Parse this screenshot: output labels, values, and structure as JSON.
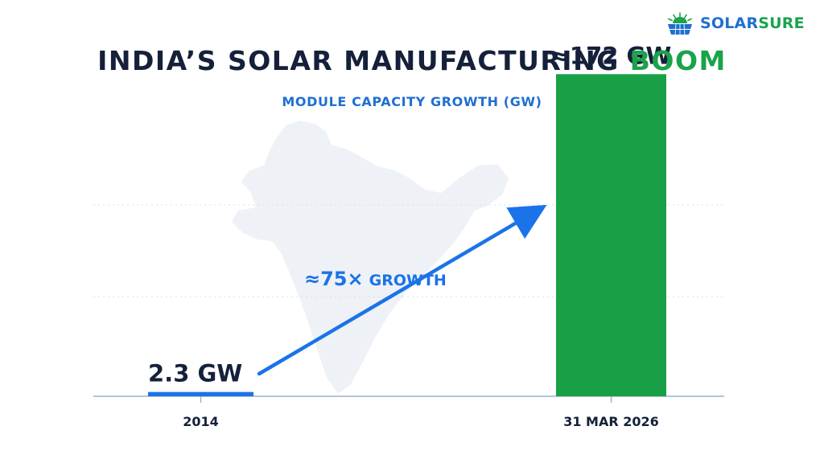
{
  "brand": {
    "name_part1": "SOLAR",
    "name_part2": "SURE",
    "color_primary": "#1f6fd1",
    "color_secondary": "#1aa34a",
    "icon": "solar-panel-sunrise-icon"
  },
  "header": {
    "title_main": "INDIA’S SOLAR MANUFACTURING",
    "title_accent": "BOOM",
    "subtitle": "MODULE CAPACITY GROWTH (GW)"
  },
  "colors": {
    "title": "#15203a",
    "bar_2014": "#1a73e8",
    "bar_2026": "#19a046",
    "arrow": "#1a73e8",
    "axis": "#9fb0c8",
    "map": "#eef1f6"
  },
  "background_icon": "india-map-icon",
  "chart_data": {
    "type": "bar",
    "title": "MODULE CAPACITY GROWTH (GW)",
    "categories": [
      "2014",
      "31 MAR 2026"
    ],
    "values": [
      2.3,
      172
    ],
    "value_labels": [
      "2.3 GW",
      "≈172 GW"
    ],
    "ylim": [
      0,
      185
    ],
    "grid": true,
    "legend": "none",
    "annotation": {
      "text_value": "≈75×",
      "text_word": "GROWTH"
    }
  }
}
